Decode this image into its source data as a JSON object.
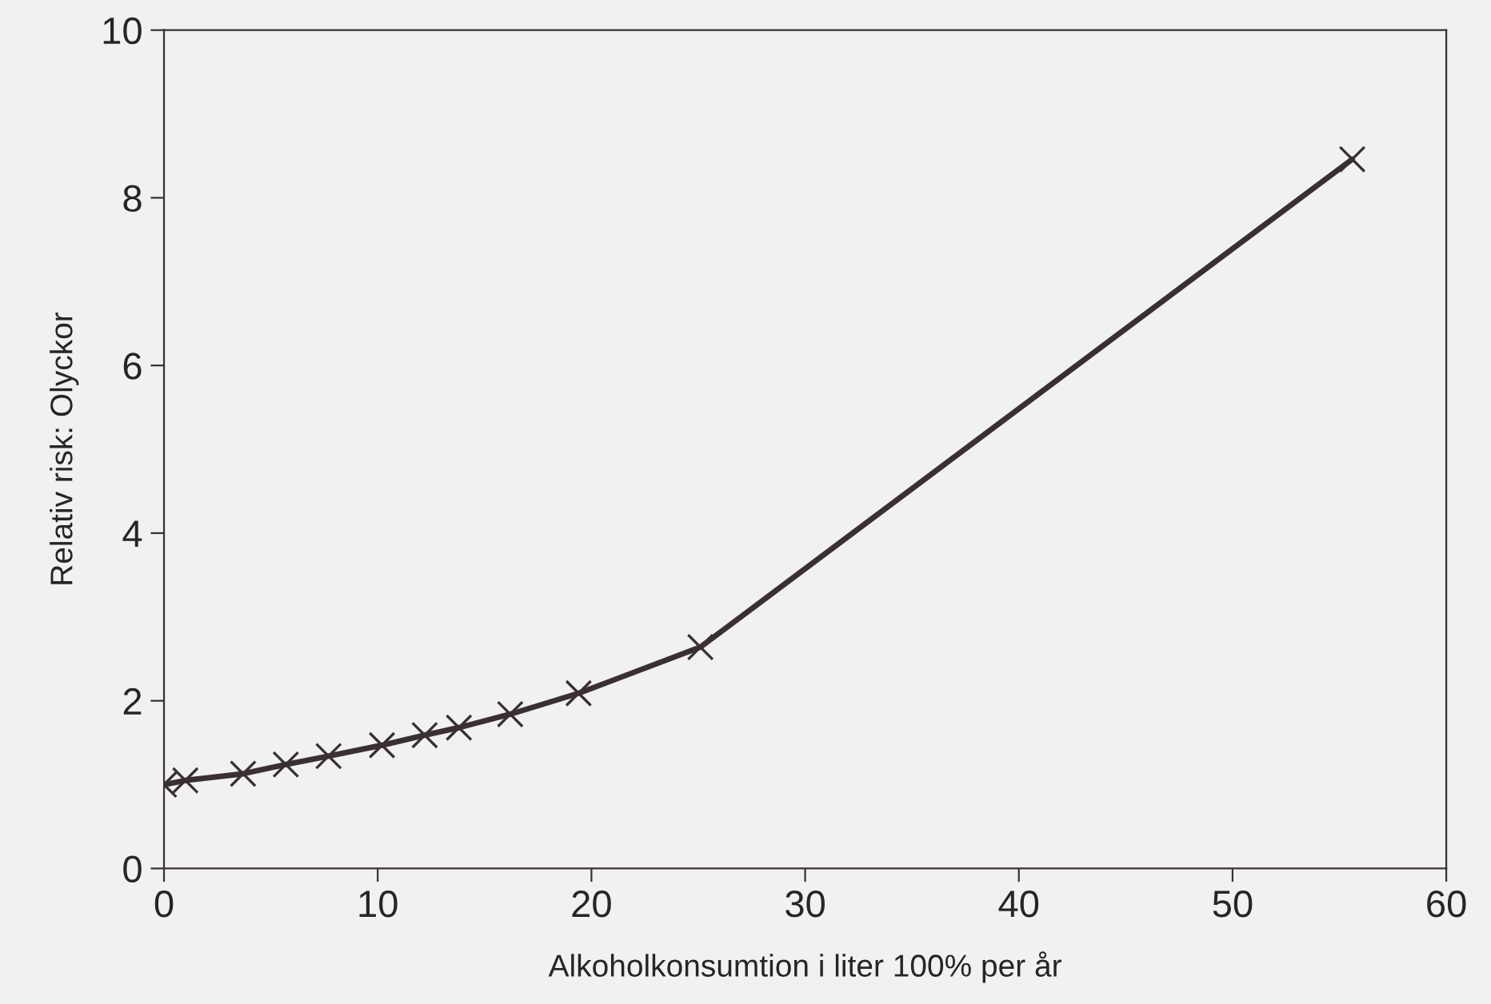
{
  "chart_data": {
    "type": "line",
    "xlabel": "Alkoholkonsumtion i liter 100% per år",
    "ylabel": "Relativ risk: Olyckor",
    "x": [
      0,
      1.0,
      3.7,
      5.7,
      7.7,
      10.2,
      12.2,
      13.8,
      16.2,
      19.4,
      25.1,
      55.6
    ],
    "series": [
      {
        "color": "#3a3034",
        "values": [
          1.0,
          1.05,
          1.13,
          1.24,
          1.34,
          1.47,
          1.59,
          1.68,
          1.84,
          2.09,
          2.64,
          8.46
        ]
      }
    ],
    "xlim": [
      0,
      60
    ],
    "ylim": [
      0,
      10
    ],
    "xticks": [
      0,
      10,
      20,
      30,
      40,
      50,
      60
    ],
    "yticks": [
      0,
      2,
      4,
      6,
      8,
      10
    ],
    "marker": "cross",
    "line_style": "solid",
    "grid": false
  }
}
